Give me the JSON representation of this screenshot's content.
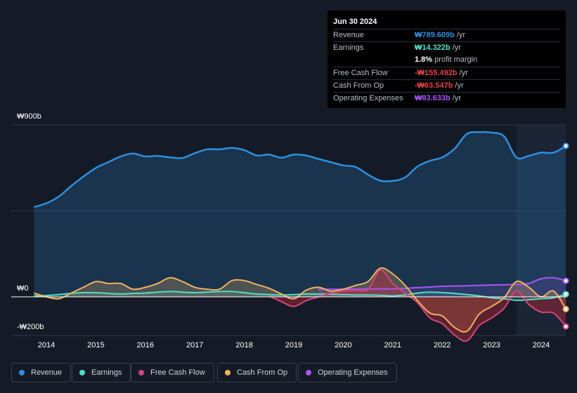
{
  "tooltip": {
    "date": "Jun 30 2024",
    "revenue": {
      "label": "Revenue",
      "value": "₩789.609b",
      "unit": "/yr",
      "color": "#2d8fe0"
    },
    "earnings": {
      "label": "Earnings",
      "value": "₩14.322b",
      "unit": "/yr",
      "color": "#4fe0c8"
    },
    "margin": {
      "value": "1.8%",
      "text": "profit margin"
    },
    "fcf": {
      "label": "Free Cash Flow",
      "value": "-₩155.492b",
      "unit": "/yr",
      "color": "#e9424a"
    },
    "cfo": {
      "label": "Cash From Op",
      "value": "-₩63.547b",
      "unit": "/yr",
      "color": "#e9424a"
    },
    "opex": {
      "label": "Operating Expenses",
      "value": "₩83.633b",
      "unit": "/yr",
      "color": "#a855f7"
    }
  },
  "legend": {
    "revenue": "Revenue",
    "earnings": "Earnings",
    "fcf": "Free Cash Flow",
    "cfo": "Cash From Op",
    "opex": "Operating Expenses"
  },
  "chart_data": {
    "type": "area",
    "title": "",
    "y_unit": "KRW billions",
    "ylim": [
      -200,
      900
    ],
    "y_tick_labels": [
      "₩900b",
      "₩0",
      "-₩200b"
    ],
    "x_tick_labels": [
      "2014",
      "2015",
      "2016",
      "2017",
      "2018",
      "2019",
      "2020",
      "2021",
      "2022",
      "2023",
      "2024"
    ],
    "forecast_shade_start": 2023.5,
    "series": [
      {
        "name": "Revenue",
        "key": "revenue",
        "color": "#2d8fe0",
        "points": [
          [
            2013.75,
            470
          ],
          [
            2014.0,
            490
          ],
          [
            2014.25,
            525
          ],
          [
            2014.5,
            580
          ],
          [
            2014.75,
            630
          ],
          [
            2015.0,
            675
          ],
          [
            2015.25,
            705
          ],
          [
            2015.5,
            735
          ],
          [
            2015.75,
            750
          ],
          [
            2016.0,
            735
          ],
          [
            2016.25,
            738
          ],
          [
            2016.5,
            730
          ],
          [
            2016.75,
            727
          ],
          [
            2017.0,
            752
          ],
          [
            2017.25,
            772
          ],
          [
            2017.5,
            772
          ],
          [
            2017.75,
            780
          ],
          [
            2018.0,
            768
          ],
          [
            2018.25,
            740
          ],
          [
            2018.5,
            745
          ],
          [
            2018.75,
            728
          ],
          [
            2019.0,
            745
          ],
          [
            2019.25,
            740
          ],
          [
            2019.5,
            722
          ],
          [
            2019.75,
            705
          ],
          [
            2020.0,
            688
          ],
          [
            2020.25,
            680
          ],
          [
            2020.5,
            640
          ],
          [
            2020.75,
            608
          ],
          [
            2021.0,
            607
          ],
          [
            2021.25,
            625
          ],
          [
            2021.5,
            682
          ],
          [
            2021.75,
            712
          ],
          [
            2022.0,
            730
          ],
          [
            2022.25,
            775
          ],
          [
            2022.5,
            853
          ],
          [
            2022.75,
            862
          ],
          [
            2023.0,
            860
          ],
          [
            2023.25,
            840
          ],
          [
            2023.5,
            730
          ],
          [
            2023.75,
            738
          ],
          [
            2024.0,
            755
          ],
          [
            2024.25,
            755
          ],
          [
            2024.5,
            790
          ]
        ]
      },
      {
        "name": "Earnings",
        "key": "earnings",
        "color": "#4fe0c8",
        "points": [
          [
            2013.75,
            5
          ],
          [
            2014.0,
            7
          ],
          [
            2014.25,
            12
          ],
          [
            2014.5,
            18
          ],
          [
            2014.75,
            22
          ],
          [
            2015.0,
            22
          ],
          [
            2015.25,
            18
          ],
          [
            2015.5,
            15
          ],
          [
            2015.75,
            18
          ],
          [
            2016.0,
            20
          ],
          [
            2016.25,
            25
          ],
          [
            2016.5,
            28
          ],
          [
            2016.75,
            25
          ],
          [
            2017.0,
            22
          ],
          [
            2017.25,
            25
          ],
          [
            2017.5,
            28
          ],
          [
            2017.75,
            28
          ],
          [
            2018.0,
            22
          ],
          [
            2018.25,
            15
          ],
          [
            2018.5,
            12
          ],
          [
            2018.75,
            10
          ],
          [
            2019.0,
            12
          ],
          [
            2019.25,
            15
          ],
          [
            2019.5,
            14
          ],
          [
            2019.75,
            14
          ],
          [
            2020.0,
            12
          ],
          [
            2020.25,
            10
          ],
          [
            2020.5,
            10
          ],
          [
            2020.75,
            8
          ],
          [
            2021.0,
            5
          ],
          [
            2021.25,
            10
          ],
          [
            2021.5,
            20
          ],
          [
            2021.75,
            25
          ],
          [
            2022.0,
            22
          ],
          [
            2022.25,
            18
          ],
          [
            2022.5,
            12
          ],
          [
            2022.75,
            5
          ],
          [
            2023.0,
            -5
          ],
          [
            2023.25,
            -10
          ],
          [
            2023.5,
            -18
          ],
          [
            2023.75,
            -15
          ],
          [
            2024.0,
            -10
          ],
          [
            2024.25,
            -5
          ],
          [
            2024.5,
            14
          ]
        ]
      },
      {
        "name": "Free Cash Flow",
        "key": "fcf",
        "color": "#d6457a",
        "points": [
          [
            2018.5,
            5
          ],
          [
            2018.75,
            -25
          ],
          [
            2019.0,
            -50
          ],
          [
            2019.25,
            -20
          ],
          [
            2019.5,
            0
          ],
          [
            2019.75,
            20
          ],
          [
            2020.0,
            30
          ],
          [
            2020.25,
            35
          ],
          [
            2020.5,
            40
          ],
          [
            2020.75,
            140
          ],
          [
            2021.0,
            70
          ],
          [
            2021.25,
            20
          ],
          [
            2021.5,
            -30
          ],
          [
            2021.75,
            -110
          ],
          [
            2022.0,
            -140
          ],
          [
            2022.25,
            -200
          ],
          [
            2022.5,
            -230
          ],
          [
            2022.75,
            -150
          ],
          [
            2023.0,
            -110
          ],
          [
            2023.25,
            -60
          ],
          [
            2023.5,
            30
          ],
          [
            2023.75,
            -40
          ],
          [
            2024.0,
            -80
          ],
          [
            2024.25,
            -85
          ],
          [
            2024.5,
            -155
          ]
        ]
      },
      {
        "name": "Cash From Op",
        "key": "cfo",
        "color": "#f0b060",
        "points": [
          [
            2013.75,
            20
          ],
          [
            2014.0,
            0
          ],
          [
            2014.25,
            -10
          ],
          [
            2014.5,
            20
          ],
          [
            2014.75,
            50
          ],
          [
            2015.0,
            80
          ],
          [
            2015.25,
            70
          ],
          [
            2015.5,
            70
          ],
          [
            2015.75,
            40
          ],
          [
            2016.0,
            50
          ],
          [
            2016.25,
            70
          ],
          [
            2016.5,
            100
          ],
          [
            2016.75,
            80
          ],
          [
            2017.0,
            50
          ],
          [
            2017.25,
            40
          ],
          [
            2017.5,
            40
          ],
          [
            2017.75,
            85
          ],
          [
            2018.0,
            85
          ],
          [
            2018.25,
            65
          ],
          [
            2018.5,
            45
          ],
          [
            2018.75,
            15
          ],
          [
            2019.0,
            -10
          ],
          [
            2019.25,
            35
          ],
          [
            2019.5,
            50
          ],
          [
            2019.75,
            30
          ],
          [
            2020.0,
            40
          ],
          [
            2020.25,
            60
          ],
          [
            2020.5,
            80
          ],
          [
            2020.75,
            150
          ],
          [
            2021.0,
            120
          ],
          [
            2021.25,
            60
          ],
          [
            2021.5,
            -20
          ],
          [
            2021.75,
            -85
          ],
          [
            2022.0,
            -100
          ],
          [
            2022.25,
            -160
          ],
          [
            2022.5,
            -180
          ],
          [
            2022.75,
            -90
          ],
          [
            2023.0,
            -50
          ],
          [
            2023.25,
            -5
          ],
          [
            2023.5,
            80
          ],
          [
            2023.75,
            50
          ],
          [
            2024.0,
            0
          ],
          [
            2024.25,
            30
          ],
          [
            2024.5,
            -64
          ]
        ]
      },
      {
        "name": "Operating Expenses",
        "key": "opex",
        "color": "#a855f7",
        "points": [
          [
            2019.5,
            40
          ],
          [
            2020.0,
            40
          ],
          [
            2020.5,
            42
          ],
          [
            2021.0,
            42
          ],
          [
            2021.5,
            48
          ],
          [
            2022.0,
            55
          ],
          [
            2022.5,
            58
          ],
          [
            2023.0,
            62
          ],
          [
            2023.5,
            65
          ],
          [
            2023.75,
            70
          ],
          [
            2024.0,
            95
          ],
          [
            2024.25,
            100
          ],
          [
            2024.5,
            84
          ]
        ]
      }
    ]
  }
}
